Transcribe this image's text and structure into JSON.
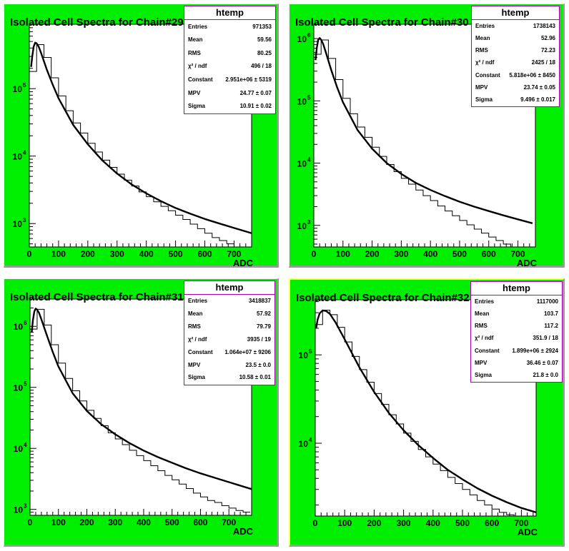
{
  "colors": {
    "pad_fill": "#00ee00",
    "frame_fill": "#ffffff",
    "histogram": "#000000",
    "fit_curve": "#000000",
    "stats_border": "#b400b4",
    "selected_pad_border": "#ffff66"
  },
  "chart_data": [
    {
      "type": "line",
      "title": "Isolated Cell Spectra for Chain#29",
      "xlabel": "ADC",
      "ylabel": "",
      "xlim": [
        0,
        760
      ],
      "ylim": [
        450,
        900000
      ],
      "y_scale": "log",
      "grid": false,
      "x_ticks": [
        0,
        100,
        200,
        300,
        400,
        500,
        600,
        700
      ],
      "y_ticks": [
        {
          "base": "10",
          "exp": "3",
          "value": 1000
        },
        {
          "base": "10",
          "exp": "4",
          "value": 10000
        },
        {
          "base": "10",
          "exp": "5",
          "value": 100000
        }
      ],
      "selected": false,
      "stats": {
        "title": "htemp",
        "rows": [
          {
            "label": "Entries",
            "value": "971353"
          },
          {
            "label": "Mean",
            "value": "59.56"
          },
          {
            "label": "RMS",
            "value": "80.25"
          },
          {
            "label": "χ² / ndf",
            "value": "496 / 18"
          },
          {
            "label": "Constant",
            "value": "2.951e+06 ± 5319"
          },
          {
            "label": "MPV",
            "value": "24.77 ± 0.07"
          },
          {
            "label": "Sigma",
            "value": "10.91 ± 0.02"
          }
        ]
      },
      "series": [
        {
          "kind": "histogram",
          "bin_width": 25,
          "x_start": 0,
          "values": [
            180000,
            450000,
            290000,
            145000,
            78000,
            47000,
            31000,
            22000,
            15500,
            11500,
            8700,
            6800,
            5400,
            4400,
            3600,
            2950,
            2500,
            2100,
            1800,
            1550,
            1330,
            1150,
            980,
            840,
            720,
            620,
            560,
            500,
            450,
            420
          ]
        },
        {
          "kind": "fit",
          "x": [
            6,
            10,
            15,
            20,
            25,
            32,
            40,
            60,
            80,
            100,
            150,
            200,
            250,
            300,
            350,
            400,
            450,
            500,
            550,
            600,
            650,
            700,
            760
          ],
          "y": [
            210000,
            300000,
            420000,
            480000,
            470000,
            420000,
            340000,
            190000,
            115000,
            72000,
            29000,
            15000,
            8600,
            5500,
            3800,
            2800,
            2150,
            1700,
            1400,
            1170,
            1000,
            860,
            720
          ]
        }
      ]
    },
    {
      "type": "line",
      "title": "Isolated Cell Spectra for Chain#30",
      "xlabel": "ADC",
      "ylabel": "",
      "xlim": [
        0,
        760
      ],
      "ylim": [
        450,
        1700000
      ],
      "y_scale": "log",
      "grid": false,
      "x_ticks": [
        0,
        100,
        200,
        300,
        400,
        500,
        600,
        700
      ],
      "y_ticks": [
        {
          "base": "10",
          "exp": "3",
          "value": 1000
        },
        {
          "base": "10",
          "exp": "4",
          "value": 10000
        },
        {
          "base": "10",
          "exp": "5",
          "value": 100000
        },
        {
          "base": "10",
          "exp": "6",
          "value": 1000000
        }
      ],
      "selected": false,
      "stats": {
        "title": "htemp",
        "rows": [
          {
            "label": "Entries",
            "value": "1738143"
          },
          {
            "label": "Mean",
            "value": "52.96"
          },
          {
            "label": "RMS",
            "value": "72.23"
          },
          {
            "label": "χ² / ndf",
            "value": "2425 / 18"
          },
          {
            "label": "Constant",
            "value": "5.818e+06 ± 8450"
          },
          {
            "label": "MPV",
            "value": "23.74 ± 0.05"
          },
          {
            "label": "Sigma",
            "value": "9.496 ± 0.017"
          }
        ]
      },
      "series": [
        {
          "kind": "histogram",
          "bin_width": 25,
          "x_start": 0,
          "values": [
            560000,
            950000,
            480000,
            220000,
            110000,
            62000,
            38000,
            26000,
            18000,
            12800,
            9500,
            7300,
            5700,
            4600,
            3700,
            3000,
            2500,
            2050,
            1700,
            1430,
            1200,
            1020,
            870,
            750,
            650,
            570,
            500,
            450,
            420,
            400
          ]
        },
        {
          "kind": "fit",
          "x": [
            6,
            10,
            15,
            20,
            25,
            32,
            40,
            60,
            80,
            100,
            150,
            200,
            250,
            300,
            350,
            400,
            450,
            500,
            550,
            600,
            650,
            700,
            750
          ],
          "y": [
            450000,
            700000,
            950000,
            1020000,
            960000,
            820000,
            630000,
            310000,
            165000,
            95000,
            34000,
            17000,
            10000,
            6700,
            4800,
            3700,
            2950,
            2400,
            2000,
            1700,
            1450,
            1250,
            1080
          ]
        }
      ]
    },
    {
      "type": "line",
      "title": "Isolated Cell Spectra for Chain#31",
      "xlabel": "ADC",
      "ylabel": "",
      "xlim": [
        0,
        780
      ],
      "ylim": [
        800,
        2800000
      ],
      "y_scale": "log",
      "grid": false,
      "x_ticks": [
        0,
        100,
        200,
        300,
        400,
        500,
        600,
        700
      ],
      "y_ticks": [
        {
          "base": "10",
          "exp": "3",
          "value": 1000
        },
        {
          "base": "10",
          "exp": "4",
          "value": 10000
        },
        {
          "base": "10",
          "exp": "5",
          "value": 100000
        },
        {
          "base": "10",
          "exp": "6",
          "value": 1000000
        }
      ],
      "selected": false,
      "stats": {
        "title": "htemp",
        "rows": [
          {
            "label": "Entries",
            "value": "3418837"
          },
          {
            "label": "Mean",
            "value": "57.92"
          },
          {
            "label": "RMS",
            "value": "79.79"
          },
          {
            "label": "χ² / ndf",
            "value": "3935 / 19"
          },
          {
            "label": "Constant",
            "value": "1.064e+07 ± 9206"
          },
          {
            "label": "MPV",
            "value": "23.5 ± 0.0"
          },
          {
            "label": "Sigma",
            "value": "10.58 ± 0.01"
          }
        ]
      },
      "series": [
        {
          "kind": "histogram",
          "bin_width": 25,
          "x_start": 0,
          "values": [
            900000,
            1900000,
            1050000,
            500000,
            250000,
            140000,
            88000,
            60000,
            42000,
            31000,
            23500,
            18000,
            14300,
            11500,
            9300,
            7600,
            6300,
            5200,
            4300,
            3600,
            3050,
            2600,
            2200,
            1850,
            1600,
            1400,
            1300,
            1150,
            1050,
            960,
            900
          ]
        },
        {
          "kind": "fit",
          "x": [
            6,
            10,
            15,
            20,
            25,
            32,
            40,
            60,
            80,
            100,
            150,
            200,
            250,
            300,
            350,
            400,
            450,
            500,
            550,
            600,
            650,
            700,
            780
          ],
          "y": [
            800000,
            1250000,
            1750000,
            1950000,
            1880000,
            1650000,
            1300000,
            700000,
            380000,
            220000,
            80000,
            41000,
            25000,
            17000,
            12200,
            9200,
            7200,
            5800,
            4700,
            3900,
            3300,
            2800,
            2150
          ]
        }
      ]
    },
    {
      "type": "line",
      "title": "Isolated Cell Spectra for Chain#32",
      "xlabel": "ADC",
      "ylabel": "",
      "xlim": [
        0,
        750
      ],
      "ylim": [
        1500,
        420000
      ],
      "y_scale": "log",
      "grid": false,
      "x_ticks": [
        0,
        100,
        200,
        300,
        400,
        500,
        600,
        700
      ],
      "y_ticks": [
        {
          "base": "10",
          "exp": "4",
          "value": 10000
        },
        {
          "base": "10",
          "exp": "5",
          "value": 100000
        }
      ],
      "selected": true,
      "stats": {
        "title": "htemp",
        "rows": [
          {
            "label": "Entries",
            "value": "1117000"
          },
          {
            "label": "Mean",
            "value": "103.7"
          },
          {
            "label": "RMS",
            "value": "117.2"
          },
          {
            "label": "χ² / ndf",
            "value": "351.9 / 18"
          },
          {
            "label": "Constant",
            "value": "1.899e+06 ± 2924"
          },
          {
            "label": "MPV",
            "value": "36.46 ± 0.07"
          },
          {
            "label": "Sigma",
            "value": "21.8 ± 0.0"
          }
        ]
      },
      "series": [
        {
          "kind": "histogram",
          "bin_width": 25,
          "x_start": 0,
          "values": [
            220000,
            320000,
            285000,
            205000,
            140000,
            96000,
            68000,
            49000,
            36500,
            27500,
            21000,
            16500,
            13000,
            10500,
            8500,
            7000,
            5800,
            4900,
            4100,
            3500,
            3000,
            2600,
            2250,
            2000,
            1800,
            1650,
            1550,
            1500,
            1480,
            1460
          ]
        },
        {
          "kind": "fit",
          "x": [
            3,
            8,
            15,
            25,
            36,
            50,
            70,
            100,
            150,
            200,
            250,
            300,
            350,
            400,
            450,
            500,
            550,
            600,
            650,
            700,
            750
          ],
          "y": [
            200000,
            250000,
            295000,
            318000,
            315000,
            290000,
            230000,
            150000,
            72000,
            38000,
            22000,
            14000,
            9500,
            6800,
            5000,
            3900,
            3100,
            2550,
            2150,
            1850,
            1650
          ]
        }
      ]
    }
  ]
}
